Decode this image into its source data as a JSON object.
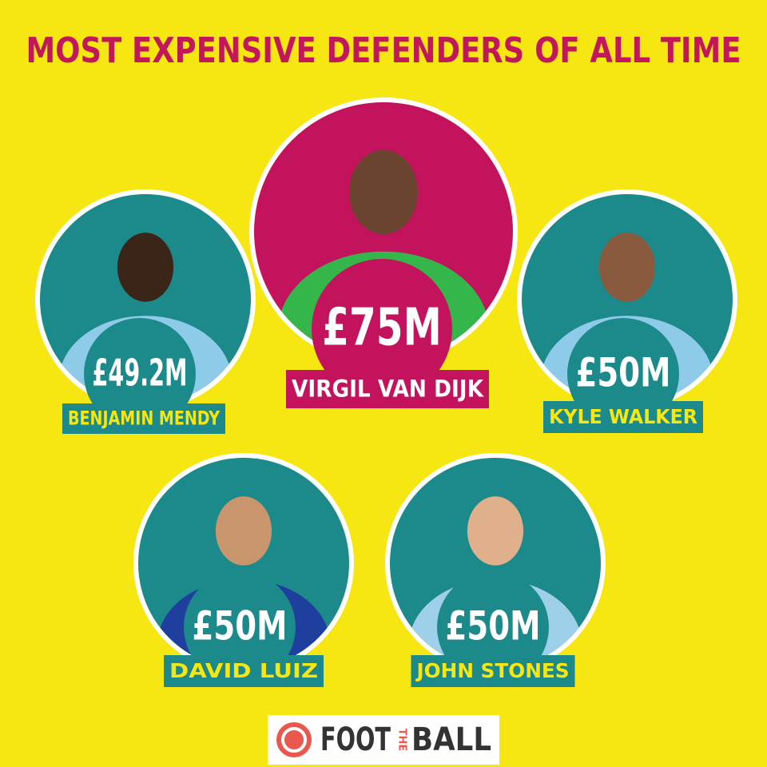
{
  "header": {
    "title": "MOST EXPENSIVE DEFENDERS OF ALL TIME"
  },
  "players": [
    {
      "fee": "£49.2M",
      "name": "BENJAMIN MENDY"
    },
    {
      "fee": "£75M",
      "name": "VIRGIL VAN DIJK"
    },
    {
      "fee": "£50M",
      "name": "KYLE WALKER"
    },
    {
      "fee": "£50M",
      "name": "DAVID LUIZ"
    },
    {
      "fee": "£50M",
      "name": "JOHN STONES"
    }
  ],
  "logo": {
    "left": "FOOT",
    "middle": "THE",
    "right": "BALL"
  }
}
